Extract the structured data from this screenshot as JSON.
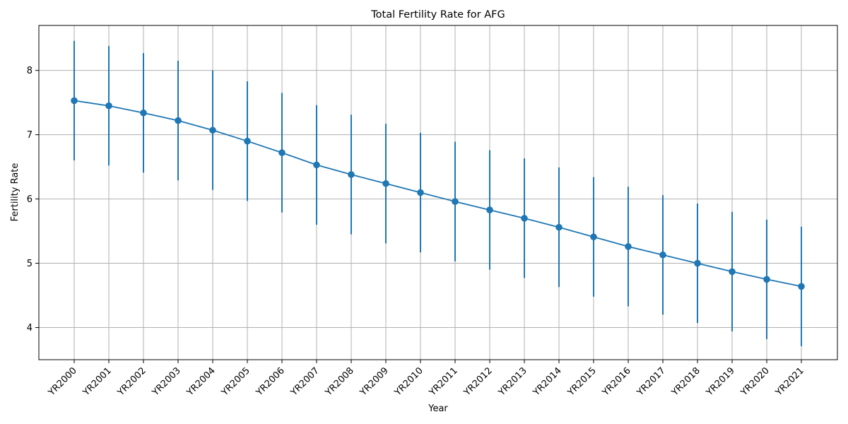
{
  "chart_data": {
    "type": "line",
    "title": "Total Fertility Rate for AFG",
    "xlabel": "Year",
    "ylabel": "Fertility Rate",
    "categories": [
      "YR2000",
      "YR2001",
      "YR2002",
      "YR2003",
      "YR2004",
      "YR2005",
      "YR2006",
      "YR2007",
      "YR2008",
      "YR2009",
      "YR2010",
      "YR2011",
      "YR2012",
      "YR2013",
      "YR2014",
      "YR2015",
      "YR2016",
      "YR2017",
      "YR2018",
      "YR2019",
      "YR2020",
      "YR2021"
    ],
    "series": [
      {
        "values": [
          7.53,
          7.45,
          7.34,
          7.22,
          7.07,
          6.9,
          6.72,
          6.53,
          6.38,
          6.24,
          6.1,
          5.96,
          5.83,
          5.7,
          5.56,
          5.41,
          5.26,
          5.13,
          5.0,
          4.87,
          4.75,
          4.64
        ],
        "error": 0.93,
        "color": "#1f77b4",
        "marker": "circle"
      }
    ],
    "ylim": [
      3.5,
      8.7
    ],
    "yticks": [
      4,
      5,
      6,
      7,
      8
    ],
    "grid": true
  }
}
